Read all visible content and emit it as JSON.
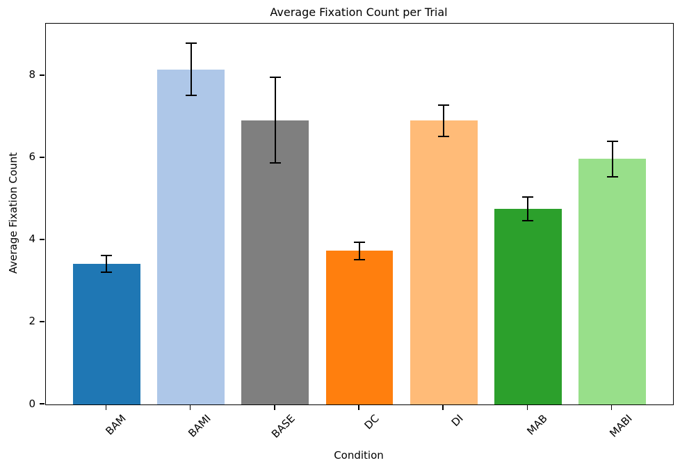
{
  "chart_data": {
    "type": "bar",
    "title": "Average Fixation Count per Trial",
    "xlabel": "Condition",
    "ylabel": "Average Fixation Count",
    "categories": [
      "BAM",
      "BAMI",
      "BASE",
      "DC",
      "DI",
      "MAB",
      "MABI"
    ],
    "values": [
      3.42,
      8.16,
      6.92,
      3.74,
      6.91,
      4.76,
      5.98
    ],
    "errors": [
      0.2,
      0.64,
      1.04,
      0.21,
      0.38,
      0.29,
      0.43
    ],
    "bar_colors": [
      "#1f77b4",
      "#aec7e8",
      "#7f7f7f",
      "#ff7f0e",
      "#ffbb78",
      "#2ca02c",
      "#98df8a"
    ],
    "error_color": "#000000",
    "yticks": [
      0,
      2,
      4,
      6,
      8
    ],
    "ylim": [
      0,
      9.27
    ],
    "xtick_rotation_deg": 45,
    "grid": false,
    "legend_visible": false,
    "background": "#ffffff"
  }
}
